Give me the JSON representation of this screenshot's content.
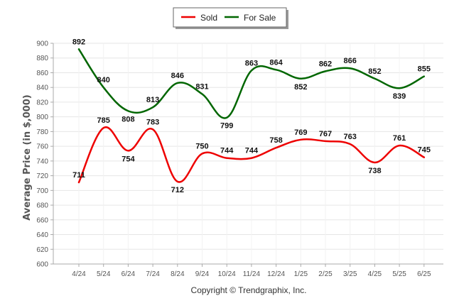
{
  "chart_data": {
    "type": "line",
    "categories": [
      "4/24",
      "5/24",
      "6/24",
      "7/24",
      "8/24",
      "9/24",
      "10/24",
      "11/24",
      "12/24",
      "1/25",
      "2/25",
      "3/25",
      "4/25",
      "5/25",
      "6/25"
    ],
    "series": [
      {
        "name": "Sold",
        "color": "#ee0000",
        "values": [
          711,
          785,
          754,
          783,
          712,
          750,
          744,
          744,
          758,
          769,
          767,
          763,
          738,
          761,
          745
        ]
      },
      {
        "name": "For Sale",
        "color": "#006600",
        "values": [
          892,
          840,
          808,
          813,
          846,
          831,
          799,
          863,
          864,
          852,
          862,
          866,
          852,
          839,
          855
        ]
      }
    ],
    "ylabel": "Average Price (in $,000)",
    "xlabel": "",
    "ylim": [
      600,
      900
    ],
    "yticks": [
      600,
      620,
      640,
      660,
      680,
      700,
      720,
      740,
      760,
      780,
      800,
      820,
      840,
      860,
      880,
      900
    ],
    "grid": true,
    "legend_placement": "top-center"
  },
  "footer": {
    "copyright": "Copyright © Trendgraphix, Inc."
  }
}
